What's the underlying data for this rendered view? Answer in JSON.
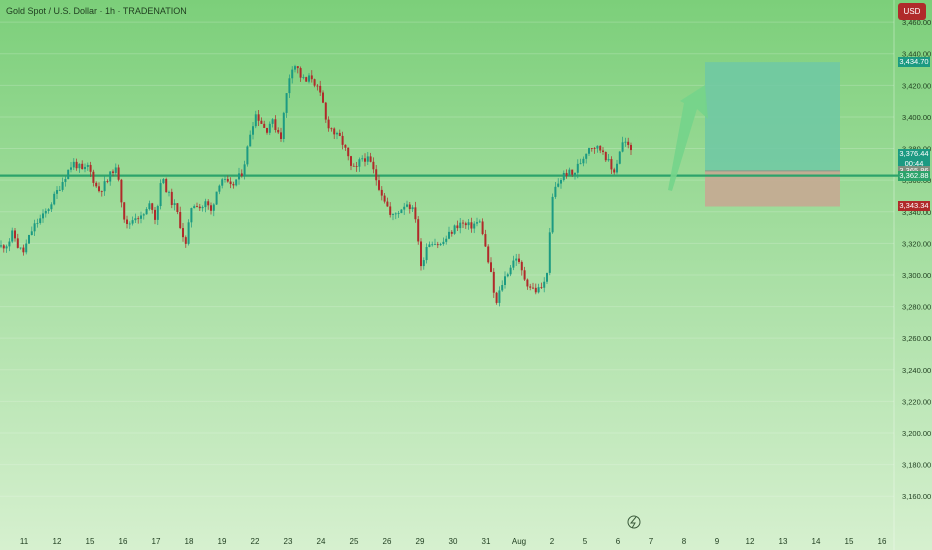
{
  "header": {
    "title": "Gold Spot / U.S. Dollar · 1h · TRADENATION"
  },
  "currency_button": "USD",
  "colors": {
    "bg_top": "#7ccf7a",
    "bg_bottom": "#d6f0cf",
    "up": "#1c9a82",
    "down": "#b02a2a",
    "level_line": "#2ca36b",
    "target_zone": "#6ec8a4",
    "stop_zone": "#c7a892",
    "arrow": "#74d48b",
    "text": "#1f3d1f"
  },
  "price_tags": {
    "target": "3,434.70",
    "current": "3,376.44",
    "countdown": "00:44",
    "entry": "3,365.86",
    "level": "3,362.88",
    "stop": "3,343.34"
  },
  "chart_data": {
    "type": "candlestick",
    "title": "Gold Spot / U.S. Dollar · 1h · TRADENATION",
    "y_axis": {
      "min": 3150,
      "max": 3474,
      "ticks": [
        3160,
        3180,
        3200,
        3220,
        3240,
        3260,
        3280,
        3300,
        3320,
        3340,
        3360,
        3380,
        3400,
        3420,
        3440,
        3460
      ],
      "tick_labels": [
        "3,160.00",
        "3,180.00",
        "3,200.00",
        "3,220.00",
        "3,240.00",
        "3,260.00",
        "3,280.00",
        "3,300.00",
        "3,320.00",
        "3,340.00",
        "3,360.00",
        "3,380.00",
        "3,400.00",
        "3,420.00",
        "3,440.00",
        "3,460.00"
      ]
    },
    "x_axis": {
      "labels": [
        "11",
        "12",
        "15",
        "16",
        "17",
        "18",
        "19",
        "22",
        "23",
        "24",
        "25",
        "26",
        "29",
        "30",
        "31",
        "Aug",
        "2",
        "5",
        "6",
        "7",
        "8",
        "9",
        "12",
        "13",
        "14",
        "15",
        "16"
      ]
    },
    "price_path": [
      [
        0,
        3318
      ],
      [
        7,
        3320
      ],
      [
        12,
        3327
      ],
      [
        17,
        3318
      ],
      [
        22,
        3314
      ],
      [
        27,
        3322
      ],
      [
        32,
        3330
      ],
      [
        37,
        3334
      ],
      [
        42,
        3337
      ],
      [
        47,
        3342
      ],
      [
        52,
        3348
      ],
      [
        57,
        3354
      ],
      [
        62,
        3360
      ],
      [
        67,
        3366
      ],
      [
        72,
        3371
      ],
      [
        77,
        3369
      ],
      [
        82,
        3365
      ],
      [
        87,
        3369
      ],
      [
        92,
        3361
      ],
      [
        97,
        3353
      ],
      [
        102,
        3356
      ],
      [
        107,
        3360
      ],
      [
        112,
        3367
      ],
      [
        117,
        3365
      ],
      [
        121,
        3345
      ],
      [
        125,
        3330
      ],
      [
        130,
        3334
      ],
      [
        135,
        3338
      ],
      [
        140,
        3336
      ],
      [
        145,
        3340
      ],
      [
        150,
        3346
      ],
      [
        155,
        3334
      ],
      [
        160,
        3362
      ],
      [
        165,
        3355
      ],
      [
        170,
        3347
      ],
      [
        175,
        3342
      ],
      [
        180,
        3330
      ],
      [
        185,
        3318
      ],
      [
        190,
        3343
      ],
      [
        195,
        3346
      ],
      [
        200,
        3342
      ],
      [
        205,
        3346
      ],
      [
        210,
        3340
      ],
      [
        215,
        3352
      ],
      [
        220,
        3362
      ],
      [
        225,
        3358
      ],
      [
        230,
        3355
      ],
      [
        235,
        3360
      ],
      [
        240,
        3363
      ],
      [
        245,
        3375
      ],
      [
        250,
        3393
      ],
      [
        255,
        3402
      ],
      [
        260,
        3397
      ],
      [
        265,
        3391
      ],
      [
        270,
        3398
      ],
      [
        275,
        3393
      ],
      [
        280,
        3388
      ],
      [
        285,
        3412
      ],
      [
        290,
        3432
      ],
      [
        295,
        3433
      ],
      [
        300,
        3425
      ],
      [
        305,
        3422
      ],
      [
        310,
        3426
      ],
      [
        315,
        3420
      ],
      [
        320,
        3412
      ],
      [
        322,
        3408
      ],
      [
        325,
        3397
      ],
      [
        330,
        3393
      ],
      [
        335,
        3388
      ],
      [
        340,
        3386
      ],
      [
        345,
        3378
      ],
      [
        350,
        3368
      ],
      [
        355,
        3366
      ],
      [
        360,
        3374
      ],
      [
        365,
        3374
      ],
      [
        370,
        3370
      ],
      [
        375,
        3361
      ],
      [
        380,
        3353
      ],
      [
        385,
        3346
      ],
      [
        390,
        3336
      ],
      [
        395,
        3339
      ],
      [
        400,
        3342
      ],
      [
        405,
        3346
      ],
      [
        410,
        3343
      ],
      [
        415,
        3336
      ],
      [
        420,
        3304
      ],
      [
        425,
        3318
      ],
      [
        430,
        3322
      ],
      [
        435,
        3320
      ],
      [
        440,
        3319
      ],
      [
        445,
        3323
      ],
      [
        450,
        3327
      ],
      [
        455,
        3331
      ],
      [
        460,
        3333
      ],
      [
        465,
        3331
      ],
      [
        470,
        3331
      ],
      [
        475,
        3333
      ],
      [
        480,
        3333
      ],
      [
        485,
        3315
      ],
      [
        490,
        3300
      ],
      [
        495,
        3280
      ],
      [
        500,
        3293
      ],
      [
        505,
        3300
      ],
      [
        510,
        3306
      ],
      [
        515,
        3312
      ],
      [
        520,
        3303
      ],
      [
        525,
        3296
      ],
      [
        530,
        3292
      ],
      [
        535,
        3290
      ],
      [
        540,
        3292
      ],
      [
        545,
        3296
      ],
      [
        548,
        3318
      ],
      [
        552,
        3352
      ],
      [
        557,
        3358
      ],
      [
        562,
        3363
      ],
      [
        567,
        3365
      ],
      [
        572,
        3363
      ],
      [
        577,
        3369
      ],
      [
        582,
        3374
      ],
      [
        587,
        3381
      ],
      [
        592,
        3382
      ],
      [
        597,
        3380
      ],
      [
        602,
        3379
      ],
      [
        607,
        3372
      ],
      [
        612,
        3364
      ],
      [
        614,
        3368
      ],
      [
        617,
        3373
      ],
      [
        620,
        3383
      ],
      [
        624,
        3384
      ],
      [
        628,
        3380
      ],
      [
        632,
        3378
      ]
    ],
    "support_level": 3362.88,
    "long_position": {
      "entry": 3365.86,
      "target": 3434.7,
      "stop": 3343.34
    }
  }
}
